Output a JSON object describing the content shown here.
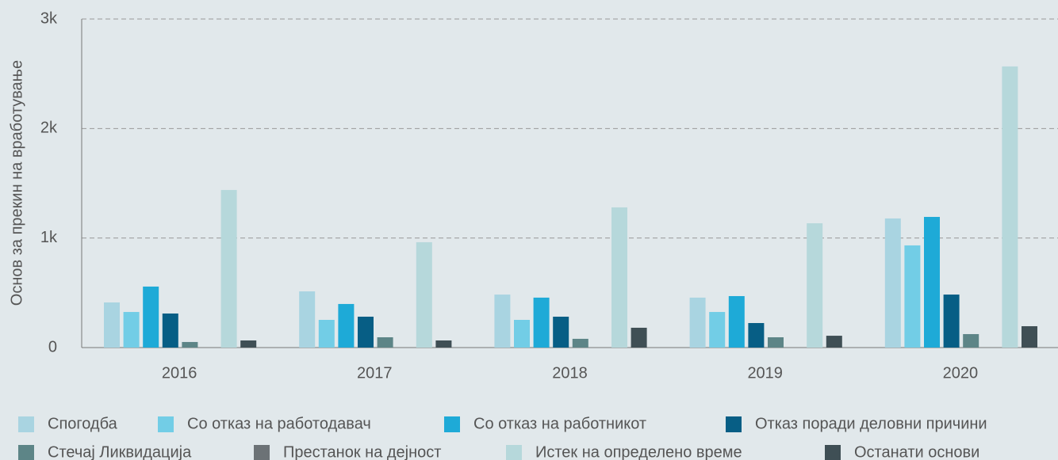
{
  "chart_data": {
    "type": "bar",
    "y_label": "Основ за прекин на вработување",
    "categories": [
      "2016",
      "2017",
      "2018",
      "2019",
      "2020"
    ],
    "series": [
      {
        "name": "Спогодба",
        "color": "#a9d4e1",
        "values": [
          412,
          513,
          484,
          456,
          1179
        ]
      },
      {
        "name": "Со отказ на работодавач",
        "color": "#72cde6",
        "values": [
          325,
          253,
          253,
          325,
          933
        ]
      },
      {
        "name": "Со отказ на работникот",
        "color": "#1eaad7",
        "values": [
          557,
          398,
          456,
          470,
          1193
        ]
      },
      {
        "name": "Отказ поради деловни причини",
        "color": "#075e85",
        "values": [
          311,
          282,
          282,
          224,
          484
        ]
      },
      {
        "name": "Стечај Ликвидација",
        "color": "#5d8587",
        "values": [
          51,
          94,
          80,
          94,
          123
        ]
      },
      {
        "name": "Престанок на дејност",
        "color": "#6c7276",
        "values": [
          0,
          0,
          0,
          0,
          0
        ]
      },
      {
        "name": "Истек на определено време",
        "color": "#b6d8db",
        "values": [
          1439,
          962,
          1280,
          1135,
          2567
        ]
      },
      {
        "name": "Останати основи",
        "color": "#3f4f55",
        "values": [
          65,
          65,
          181,
          108,
          195
        ]
      }
    ],
    "ylim": [
      0,
      3000
    ],
    "yticks": [
      0,
      {
        "value": 1000,
        "label": "1k"
      },
      {
        "value": 2000,
        "label": "2k"
      },
      {
        "value": 3000,
        "label": "3k"
      }
    ],
    "grid": true
  }
}
